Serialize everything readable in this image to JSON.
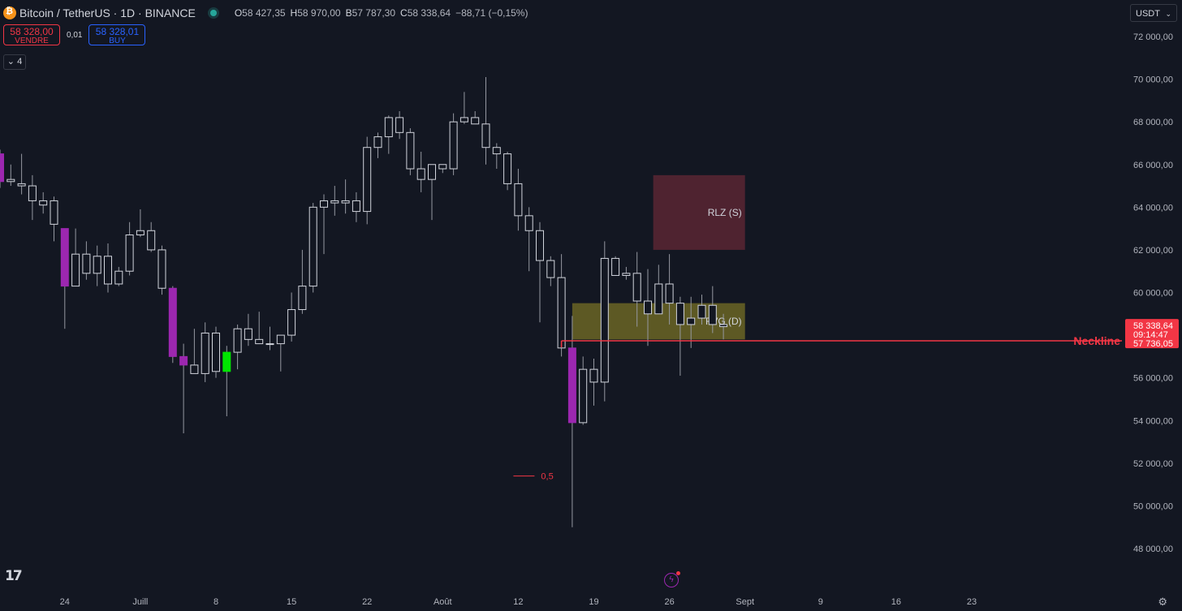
{
  "header": {
    "symbol": "Bitcoin / TetherUS · 1D · BINANCE",
    "ohlc": [
      {
        "k": "O",
        "v": "58 427,35"
      },
      {
        "k": "H",
        "v": "58 970,00"
      },
      {
        "k": "B",
        "v": "57 787,30"
      },
      {
        "k": "C",
        "v": "58 338,64"
      }
    ],
    "change": "−88,71 (−0,15%)"
  },
  "trade": {
    "sell_price": "58 328,00",
    "sell_label": "VENDRE",
    "spread": "0,01",
    "buy_price": "58 328,01",
    "buy_label": "BUY"
  },
  "indicator_count": "4",
  "currency": "USDT",
  "colors": {
    "background": "#131722",
    "candle_up_fill": "#131722",
    "candle_down_fill": "#131722",
    "candle_border": "#d1d4dc",
    "candle_purple": "#9c27b0",
    "candle_green": "#00e600",
    "neckline": "#f23645",
    "rlz_zone": "#5a2632",
    "fvg_zone": "#6b6524"
  },
  "icons": {
    "logo": "tradingview-logo",
    "settings": "gear-icon",
    "alerts": "flash-icon"
  },
  "chart_data": {
    "type": "candlestick",
    "ylim": [
      47000,
      73000
    ],
    "y_ticks": [
      {
        "v": 72000,
        "label": "72 000,00"
      },
      {
        "v": 70000,
        "label": "70 000,00"
      },
      {
        "v": 68000,
        "label": "68 000,00"
      },
      {
        "v": 66000,
        "label": "66 000,00"
      },
      {
        "v": 64000,
        "label": "64 000,00"
      },
      {
        "v": 62000,
        "label": "62 000,00"
      },
      {
        "v": 60000,
        "label": "60 000,00"
      },
      {
        "v": 56000,
        "label": "56 000,00"
      },
      {
        "v": 54000,
        "label": "54 000,00"
      },
      {
        "v": 52000,
        "label": "52 000,00"
      },
      {
        "v": 50000,
        "label": "50 000,00"
      },
      {
        "v": 48000,
        "label": "48 000,00"
      }
    ],
    "x_ticks": [
      {
        "i": 6,
        "label": "24"
      },
      {
        "i": 13,
        "label": "Juill"
      },
      {
        "i": 20,
        "label": "8"
      },
      {
        "i": 27,
        "label": "15"
      },
      {
        "i": 34,
        "label": "22"
      },
      {
        "i": 41,
        "label": "Août"
      },
      {
        "i": 48,
        "label": "12"
      },
      {
        "i": 55,
        "label": "19"
      },
      {
        "i": 62,
        "label": "26"
      },
      {
        "i": 69,
        "label": "Sept"
      },
      {
        "i": 76,
        "label": "9"
      },
      {
        "i": 83,
        "label": "16"
      },
      {
        "i": 90,
        "label": "23"
      }
    ],
    "candles": [
      {
        "o": 66500,
        "h": 66700,
        "l": 64900,
        "c": 65200,
        "col": "purple"
      },
      {
        "o": 65300,
        "h": 66000,
        "l": 65000,
        "c": 65200
      },
      {
        "o": 65000,
        "h": 66500,
        "l": 64600,
        "c": 65100
      },
      {
        "o": 65000,
        "h": 65500,
        "l": 63400,
        "c": 64300
      },
      {
        "o": 64100,
        "h": 64700,
        "l": 63700,
        "c": 64300
      },
      {
        "o": 64300,
        "h": 64500,
        "l": 62400,
        "c": 63200
      },
      {
        "o": 63000,
        "h": 63000,
        "l": 58300,
        "c": 60300,
        "col": "purple"
      },
      {
        "o": 60300,
        "h": 63000,
        "l": 60300,
        "c": 61800
      },
      {
        "o": 61800,
        "h": 62400,
        "l": 60600,
        "c": 60900
      },
      {
        "o": 60900,
        "h": 62200,
        "l": 60300,
        "c": 61700
      },
      {
        "o": 61700,
        "h": 62300,
        "l": 60000,
        "c": 60400
      },
      {
        "o": 60400,
        "h": 61200,
        "l": 60300,
        "c": 61000
      },
      {
        "o": 61000,
        "h": 63300,
        "l": 60800,
        "c": 62700
      },
      {
        "o": 62700,
        "h": 63900,
        "l": 62600,
        "c": 62900
      },
      {
        "o": 62900,
        "h": 63300,
        "l": 61900,
        "c": 62000
      },
      {
        "o": 62000,
        "h": 62200,
        "l": 59900,
        "c": 60200
      },
      {
        "o": 60200,
        "h": 60300,
        "l": 56700,
        "c": 57000,
        "col": "purple"
      },
      {
        "o": 57000,
        "h": 57600,
        "l": 53400,
        "c": 56600,
        "col": "purple"
      },
      {
        "o": 56600,
        "h": 58300,
        "l": 56200,
        "c": 56200
      },
      {
        "o": 56200,
        "h": 58600,
        "l": 55800,
        "c": 58100
      },
      {
        "o": 58100,
        "h": 58400,
        "l": 56000,
        "c": 56300
      },
      {
        "o": 56300,
        "h": 57500,
        "l": 54200,
        "c": 57200,
        "col": "green"
      },
      {
        "o": 57200,
        "h": 58500,
        "l": 56400,
        "c": 58300
      },
      {
        "o": 58300,
        "h": 59000,
        "l": 57500,
        "c": 57800
      },
      {
        "o": 57800,
        "h": 59100,
        "l": 57600,
        "c": 57600
      },
      {
        "o": 57600,
        "h": 58400,
        "l": 57300,
        "c": 57600
      },
      {
        "o": 57600,
        "h": 58000,
        "l": 56300,
        "c": 58000
      },
      {
        "o": 58000,
        "h": 60000,
        "l": 57700,
        "c": 59200
      },
      {
        "o": 59200,
        "h": 62000,
        "l": 59000,
        "c": 60300
      },
      {
        "o": 60300,
        "h": 64200,
        "l": 60000,
        "c": 64000
      },
      {
        "o": 64000,
        "h": 64600,
        "l": 61800,
        "c": 64300
      },
      {
        "o": 64300,
        "h": 65000,
        "l": 63600,
        "c": 64200
      },
      {
        "o": 64200,
        "h": 65300,
        "l": 63700,
        "c": 64300
      },
      {
        "o": 64300,
        "h": 64700,
        "l": 63300,
        "c": 63800
      },
      {
        "o": 63800,
        "h": 67300,
        "l": 63200,
        "c": 66800
      },
      {
        "o": 66800,
        "h": 67500,
        "l": 66300,
        "c": 67300
      },
      {
        "o": 67300,
        "h": 68300,
        "l": 66500,
        "c": 68200
      },
      {
        "o": 68200,
        "h": 68500,
        "l": 67200,
        "c": 67500
      },
      {
        "o": 67500,
        "h": 67700,
        "l": 65500,
        "c": 65800
      },
      {
        "o": 65800,
        "h": 66600,
        "l": 64700,
        "c": 65300
      },
      {
        "o": 65300,
        "h": 66000,
        "l": 63400,
        "c": 66000
      },
      {
        "o": 66000,
        "h": 66000,
        "l": 65600,
        "c": 65800
      },
      {
        "o": 65800,
        "h": 68400,
        "l": 65500,
        "c": 68000
      },
      {
        "o": 68000,
        "h": 69400,
        "l": 67900,
        "c": 68200
      },
      {
        "o": 68200,
        "h": 68500,
        "l": 67900,
        "c": 67900
      },
      {
        "o": 67900,
        "h": 70100,
        "l": 66000,
        "c": 66800
      },
      {
        "o": 66800,
        "h": 67000,
        "l": 65800,
        "c": 66500
      },
      {
        "o": 66500,
        "h": 66600,
        "l": 64800,
        "c": 65100
      },
      {
        "o": 65100,
        "h": 65800,
        "l": 62900,
        "c": 63600
      },
      {
        "o": 63600,
        "h": 64000,
        "l": 61000,
        "c": 62900
      },
      {
        "o": 62900,
        "h": 63300,
        "l": 58600,
        "c": 61500
      },
      {
        "o": 61500,
        "h": 61700,
        "l": 60300,
        "c": 60700
      },
      {
        "o": 60700,
        "h": 61800,
        "l": 57000,
        "c": 57400
      },
      {
        "o": 57400,
        "h": 58900,
        "l": 49000,
        "c": 53900,
        "col": "purple"
      },
      {
        "o": 53900,
        "h": 57000,
        "l": 53800,
        "c": 56400
      },
      {
        "o": 56400,
        "h": 56900,
        "l": 54700,
        "c": 55800
      },
      {
        "o": 55800,
        "h": 62400,
        "l": 54900,
        "c": 61600
      },
      {
        "o": 61600,
        "h": 61700,
        "l": 60800,
        "c": 60800
      },
      {
        "o": 60800,
        "h": 61200,
        "l": 60600,
        "c": 60900
      },
      {
        "o": 60900,
        "h": 61900,
        "l": 58400,
        "c": 59600
      },
      {
        "o": 59600,
        "h": 61100,
        "l": 57500,
        "c": 59000
      },
      {
        "o": 59000,
        "h": 61300,
        "l": 59000,
        "c": 60400
      },
      {
        "o": 60400,
        "h": 61800,
        "l": 58500,
        "c": 59500
      },
      {
        "o": 59500,
        "h": 59800,
        "l": 56100,
        "c": 58500
      },
      {
        "o": 58500,
        "h": 59800,
        "l": 57400,
        "c": 58800
      },
      {
        "o": 58800,
        "h": 59900,
        "l": 58500,
        "c": 59400
      },
      {
        "o": 59400,
        "h": 60300,
        "l": 58100,
        "c": 58500
      },
      {
        "o": 58500,
        "h": 59000,
        "l": 57800,
        "c": 58400
      }
    ],
    "current_price": {
      "price": "58 338,64",
      "timer": "09:14:47",
      "value": 58338.64
    },
    "neckline": {
      "value": 57736.05,
      "label": "Neckline",
      "price_label": "57 736,05"
    },
    "zones": [
      {
        "label": "RLZ (S)",
        "top": 65500,
        "bottom": 62000,
        "i_start": 60.5,
        "i_end": 69
      },
      {
        "label": "FVG (D)",
        "top": 59500,
        "bottom": 57800,
        "i_start": 53,
        "i_end": 69
      }
    ],
    "fib": {
      "label": "0,5",
      "value": 51400
    }
  }
}
